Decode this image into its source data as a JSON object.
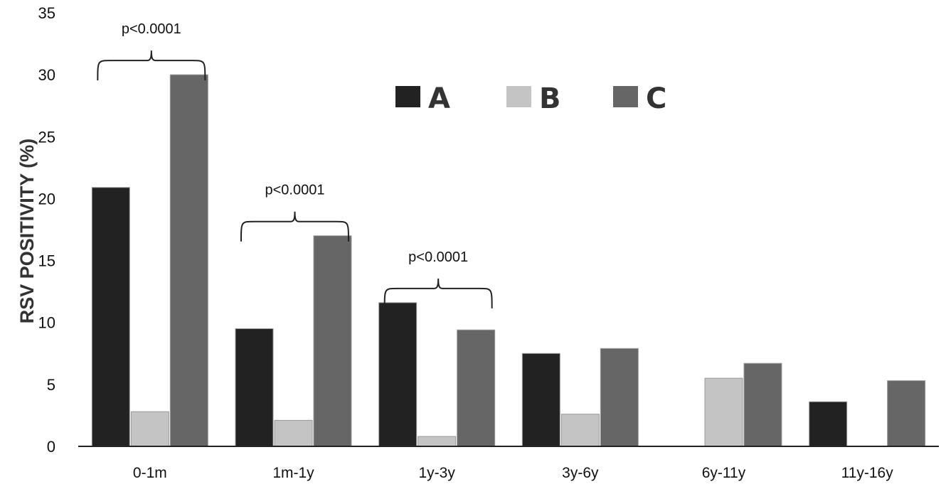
{
  "chart_data": {
    "type": "bar",
    "title": "",
    "xlabel": "",
    "ylabel": "RSV POSITIVITY (%)",
    "ylim": [
      0,
      35
    ],
    "yticks": [
      0,
      5,
      10,
      15,
      20,
      25,
      30,
      35
    ],
    "categories": [
      "0-1m",
      "1m-1y",
      "1y-3y",
      "3y-6y",
      "6y-11y",
      "11y-16y"
    ],
    "series": [
      {
        "name": "A",
        "color": "#222222",
        "values": [
          20.9,
          9.5,
          11.6,
          7.5,
          0,
          3.6
        ]
      },
      {
        "name": "B",
        "color": "#c4c4c4",
        "values": [
          2.8,
          2.1,
          0.8,
          2.6,
          5.5,
          0
        ]
      },
      {
        "name": "C",
        "color": "#666666",
        "values": [
          30.0,
          17.0,
          9.4,
          7.9,
          6.7,
          5.3
        ]
      }
    ],
    "legend_position": "top-center",
    "grid": false,
    "annotations": [
      {
        "text": "p<0.0001",
        "category": "0-1m",
        "series_from": "A",
        "series_to": "C"
      },
      {
        "text": "p<0.0001",
        "category": "1m-1y",
        "series_from": "A",
        "series_to": "C"
      },
      {
        "text": "p<0.0001",
        "category": "1y-3y",
        "series_from": "A",
        "series_to": "C"
      }
    ]
  }
}
